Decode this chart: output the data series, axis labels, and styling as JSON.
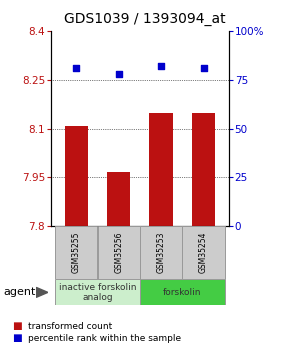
{
  "title": "GDS1039 / 1393094_at",
  "samples": [
    "GSM35255",
    "GSM35256",
    "GSM35253",
    "GSM35254"
  ],
  "bar_values": [
    8.108,
    7.965,
    8.148,
    8.148
  ],
  "dot_values": [
    81,
    78,
    82,
    81
  ],
  "ylim_left": [
    7.8,
    8.4
  ],
  "ylim_right": [
    0,
    100
  ],
  "yticks_left": [
    7.8,
    7.95,
    8.1,
    8.25,
    8.4
  ],
  "yticks_right": [
    0,
    25,
    50,
    75,
    100
  ],
  "ytick_labels_left": [
    "7.8",
    "7.95",
    "8.1",
    "8.25",
    "8.4"
  ],
  "ytick_labels_right": [
    "0",
    "25",
    "50",
    "75",
    "100%"
  ],
  "bar_color": "#bb1111",
  "dot_color": "#0000cc",
  "bar_width": 0.55,
  "groups": [
    {
      "label": "inactive forskolin\nanalog",
      "samples": [
        0,
        1
      ],
      "color": "#cceecc"
    },
    {
      "label": "forskolin",
      "samples": [
        2,
        3
      ],
      "color": "#44cc44"
    }
  ],
  "agent_label": "agent",
  "legend_bar_label": "transformed count",
  "legend_dot_label": "percentile rank within the sample",
  "background_color": "#ffffff",
  "plot_bg_color": "#ffffff",
  "title_fontsize": 10,
  "tick_fontsize": 7.5,
  "sample_fontsize": 5.5,
  "group_fontsize": 6.5,
  "legend_fontsize": 6.5
}
